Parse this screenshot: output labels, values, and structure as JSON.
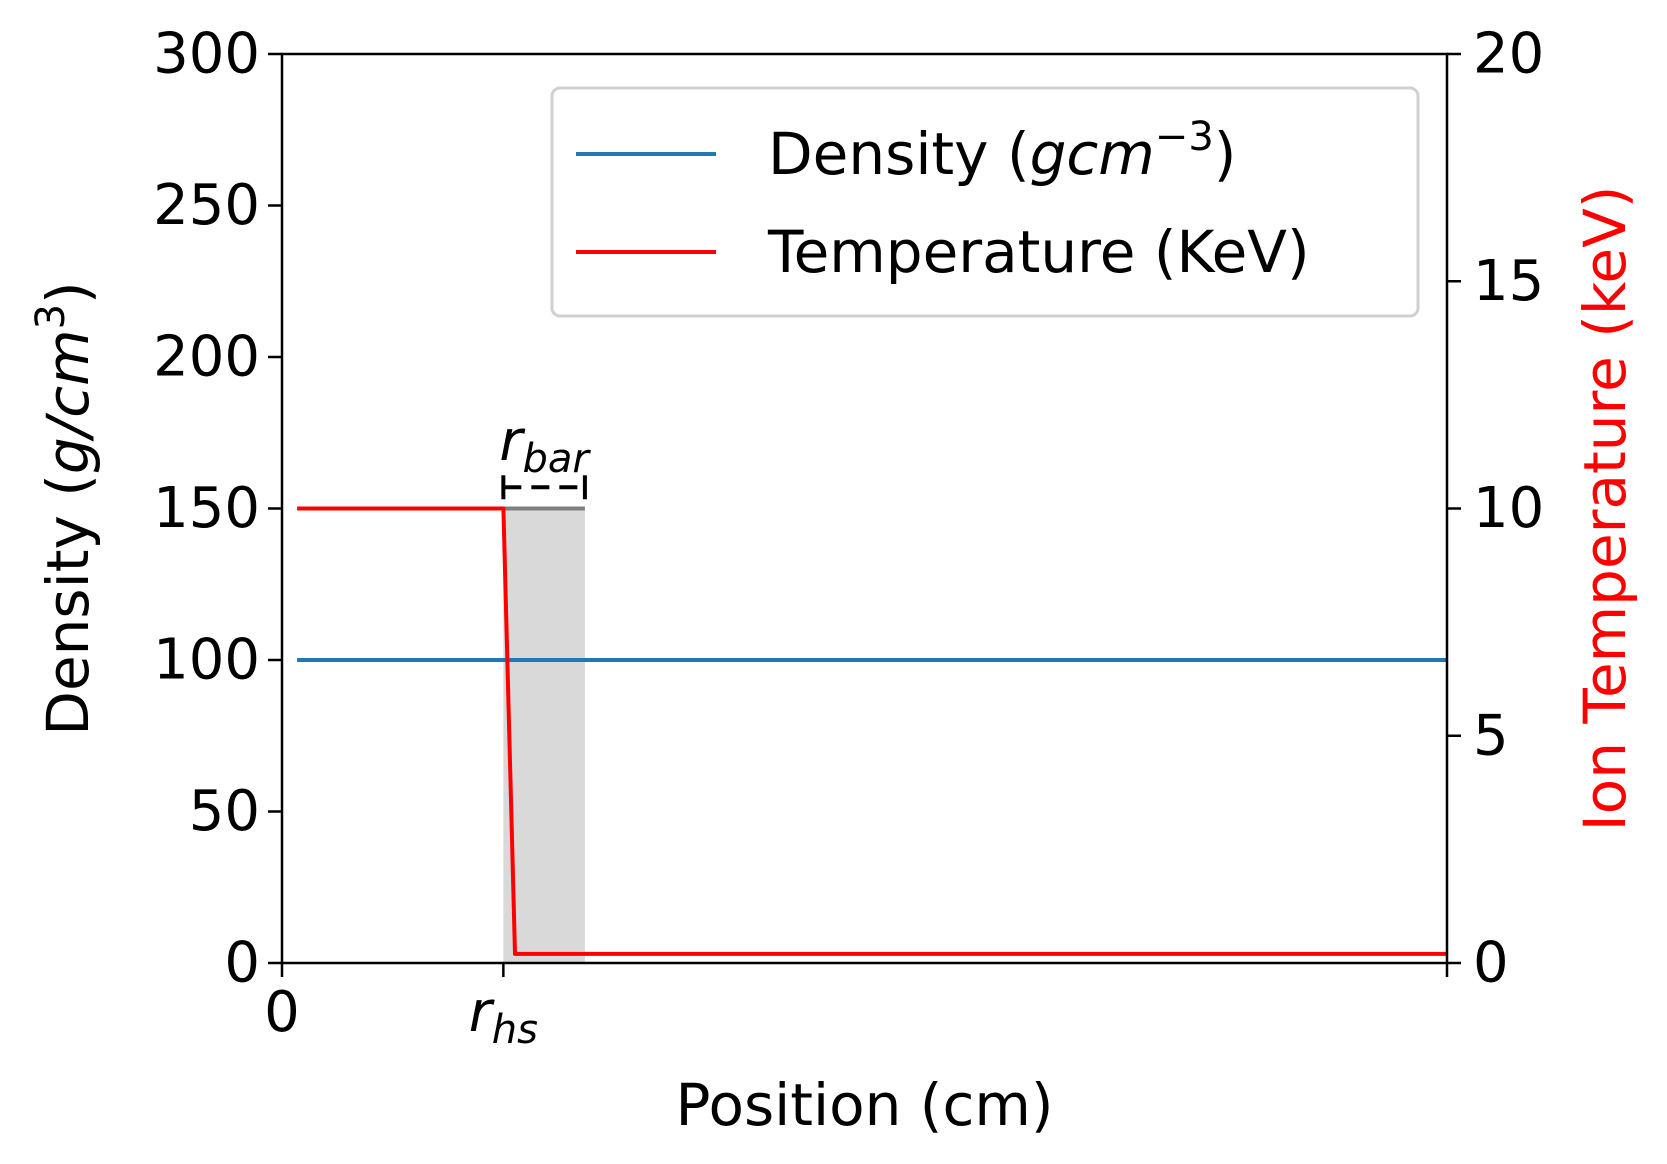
{
  "chart_data": {
    "type": "line",
    "xlabel": "Position (cm)",
    "ylabel_left": {
      "text": "Density (",
      "math": "g/cm",
      "sup": "3",
      "close": ")"
    },
    "ylabel_right": "Ion Temperature (keV)",
    "y_left_range": [
      0,
      300
    ],
    "y_left_ticks": [
      "0",
      "50",
      "100",
      "150",
      "200",
      "250",
      "300"
    ],
    "y_right_range": [
      0,
      20
    ],
    "y_right_ticks": [
      "0",
      "5",
      "10",
      "15",
      "20"
    ],
    "x_range": [
      0,
      1.0
    ],
    "x_ticks": [
      {
        "value": 0,
        "label": "0"
      },
      {
        "value": 0.19,
        "label": "r",
        "sub": "hs",
        "italic": true
      }
    ],
    "grid": false,
    "legend_position": "top-right",
    "series": [
      {
        "name": "Density",
        "name_math": "gcm",
        "name_sup": "−3",
        "color": "#1f77b4",
        "axis": "left",
        "x": [
          0.013,
          1.0
        ],
        "y": [
          100,
          100
        ]
      },
      {
        "name": "Temperature (KeV)",
        "color": "#ff0000",
        "axis": "right",
        "x": [
          0.013,
          0.19,
          0.2,
          1.0
        ],
        "y": [
          10,
          10,
          0.2,
          0.2
        ]
      }
    ],
    "shaded_region": {
      "x": [
        0.19,
        0.26
      ],
      "y_left": [
        0,
        150
      ],
      "color": "#d9d9d9",
      "top_line_color": "#808080"
    },
    "annotations": [
      {
        "text": "r",
        "sub": "bar",
        "italic": true,
        "x": 0.225,
        "y_left": 172
      }
    ],
    "bracket": {
      "x": [
        0.19,
        0.26
      ],
      "y_left": 157,
      "style": "dashed",
      "color": "#000000"
    }
  }
}
